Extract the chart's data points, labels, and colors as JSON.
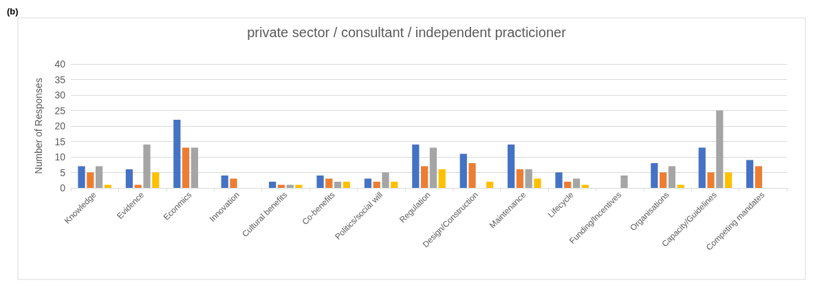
{
  "chart_data": {
    "type": "bar",
    "title": "private sector / consultant / independent practicioner",
    "ylabel": "Number of Responses",
    "annotations": [
      "(b)"
    ],
    "categories": [
      "Knowledge",
      "Evidence",
      "Econmics",
      "Innovation",
      "Cultural benefits",
      "Co-benefits",
      "Politics/social will",
      "Regulation",
      "Design/Construction",
      "Maintenance",
      "Lifecycle",
      "Funding/Incentives",
      "Organisations",
      "Capacity/Guidelines",
      "Competing mandates"
    ],
    "series": [
      {
        "color": "#4472c4",
        "values": [
          7,
          6,
          22,
          4,
          2,
          4,
          3,
          14,
          11,
          14,
          5,
          0,
          8,
          13,
          9
        ]
      },
      {
        "color": "#ed7d31",
        "values": [
          5,
          1,
          13,
          3,
          1,
          3,
          2,
          7,
          8,
          6,
          2,
          0,
          5,
          5,
          7
        ]
      },
      {
        "color": "#a5a5a5",
        "values": [
          7,
          14,
          13,
          0,
          1,
          2,
          5,
          13,
          0,
          6,
          3,
          4,
          7,
          25,
          0
        ]
      },
      {
        "color": "#ffc000",
        "values": [
          1,
          5,
          0,
          0,
          1,
          2,
          2,
          6,
          2,
          3,
          1,
          0,
          1,
          5,
          0
        ]
      }
    ],
    "ylim": [
      0,
      40
    ],
    "yticks": [
      0,
      5,
      10,
      15,
      20,
      25,
      30,
      35,
      40
    ],
    "grid": "y"
  }
}
